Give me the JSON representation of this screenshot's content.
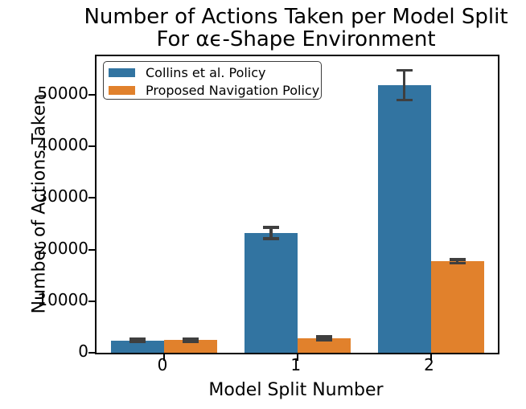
{
  "title_line1": "Number of Actions Taken per Model Split",
  "title_line2": "For αϵ-Shape Environment",
  "chart_data": {
    "type": "bar",
    "title": "Number of Actions Taken per Model Split For αϵ-Shape Environment",
    "xlabel": "Model Split Number",
    "ylabel": "Number of Actions Taken",
    "categories": [
      "0",
      "1",
      "2"
    ],
    "series": [
      {
        "name": "Collins et al. Policy",
        "color": "#3274a1",
        "values": [
          2400,
          23200,
          51900
        ],
        "errors": [
          250,
          1100,
          2900
        ]
      },
      {
        "name": "Proposed Navigation Policy",
        "color": "#e1812c",
        "values": [
          2450,
          2800,
          17750
        ],
        "errors": [
          250,
          300,
          350
        ]
      }
    ],
    "yticks": [
      0,
      10000,
      20000,
      30000,
      40000,
      50000
    ],
    "ylim": [
      0,
      57500
    ],
    "grid": false,
    "legend_position": "upper left",
    "error_color": "#3f3f3f",
    "spine_color": "#000000"
  }
}
